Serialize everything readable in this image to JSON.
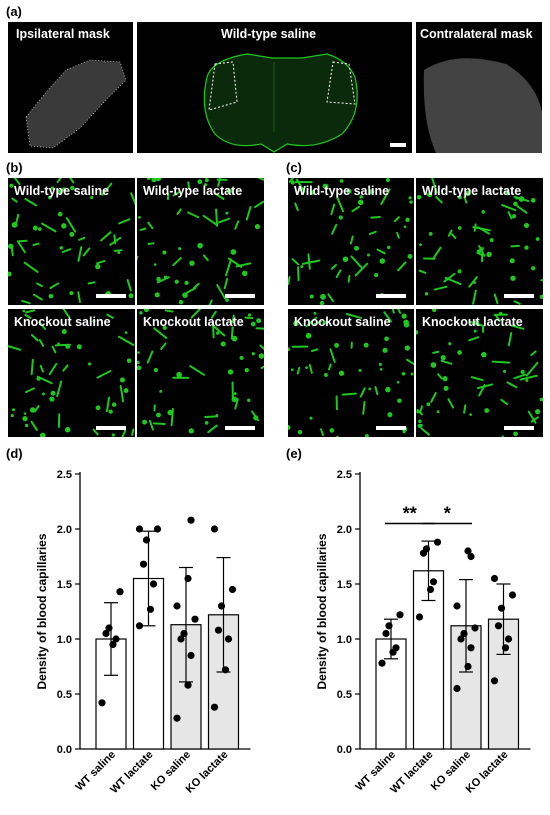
{
  "panel_labels": {
    "a": "(a)",
    "b": "(b)",
    "c": "(c)",
    "d": "(d)",
    "e": "(e)"
  },
  "panel_a": {
    "left_title": "Ipsilateral mask",
    "center_title": "Wild-type saline",
    "right_title": "Contralateral  mask"
  },
  "panel_b": {
    "tiles": [
      "Wild-type saline",
      "Wild-type lactate",
      "Knockout saline",
      "Knockout lactate"
    ]
  },
  "panel_c": {
    "tiles": [
      "Wild-type saline",
      "Wild-type lactate",
      "Knockout saline",
      "Knockout lactate"
    ]
  },
  "colors": {
    "green": "#1ec81e",
    "bar_white": "#ffffff",
    "bar_gray": "#e6e6e6"
  },
  "chart_data": [
    {
      "type": "bar",
      "panel": "(d)",
      "categories": [
        "WT saline",
        "WT lactate",
        "KO saline",
        "KO lactate"
      ],
      "values": [
        1.0,
        1.55,
        1.13,
        1.22
      ],
      "error": [
        0.33,
        0.43,
        0.52,
        0.52
      ],
      "points": [
        [
          0.42,
          0.95,
          1.0,
          1.05,
          1.1,
          1.43
        ],
        [
          1.12,
          1.27,
          1.5,
          1.68,
          1.9,
          2.0,
          2.0
        ],
        [
          0.28,
          0.58,
          0.85,
          1.0,
          1.05,
          1.18,
          1.3,
          1.55,
          2.08
        ],
        [
          0.38,
          0.72,
          1.0,
          1.08,
          1.3,
          1.45,
          2.0
        ]
      ],
      "ylabel": "Density of blood capillaries",
      "ylim": [
        0.0,
        2.5
      ],
      "yticks": [
        "0.0",
        "0.5",
        "1.0",
        "1.5",
        "2.0",
        "2.5"
      ],
      "significance": []
    },
    {
      "type": "bar",
      "panel": "(e)",
      "categories": [
        "WT saline",
        "WT lactate",
        "KO saline",
        "KO lactate"
      ],
      "values": [
        1.0,
        1.62,
        1.12,
        1.18
      ],
      "error": [
        0.18,
        0.27,
        0.42,
        0.32
      ],
      "points": [
        [
          0.78,
          0.88,
          0.92,
          1.05,
          1.12,
          1.22
        ],
        [
          1.2,
          1.45,
          1.52,
          1.78,
          1.82,
          1.88
        ],
        [
          0.55,
          0.75,
          0.92,
          1.0,
          1.05,
          1.1,
          1.3,
          1.8,
          1.75
        ],
        [
          0.62,
          0.92,
          1.0,
          1.12,
          1.28,
          1.4,
          1.55
        ]
      ],
      "ylabel": "Density of blood capillaries",
      "ylim": [
        0.0,
        2.5
      ],
      "yticks": [
        "0.0",
        "0.5",
        "1.0",
        "1.5",
        "2.0",
        "2.5"
      ],
      "significance": [
        {
          "from": 0,
          "to": 1,
          "label": "**"
        },
        {
          "from": 1,
          "to": 2,
          "label": "*"
        }
      ]
    }
  ]
}
